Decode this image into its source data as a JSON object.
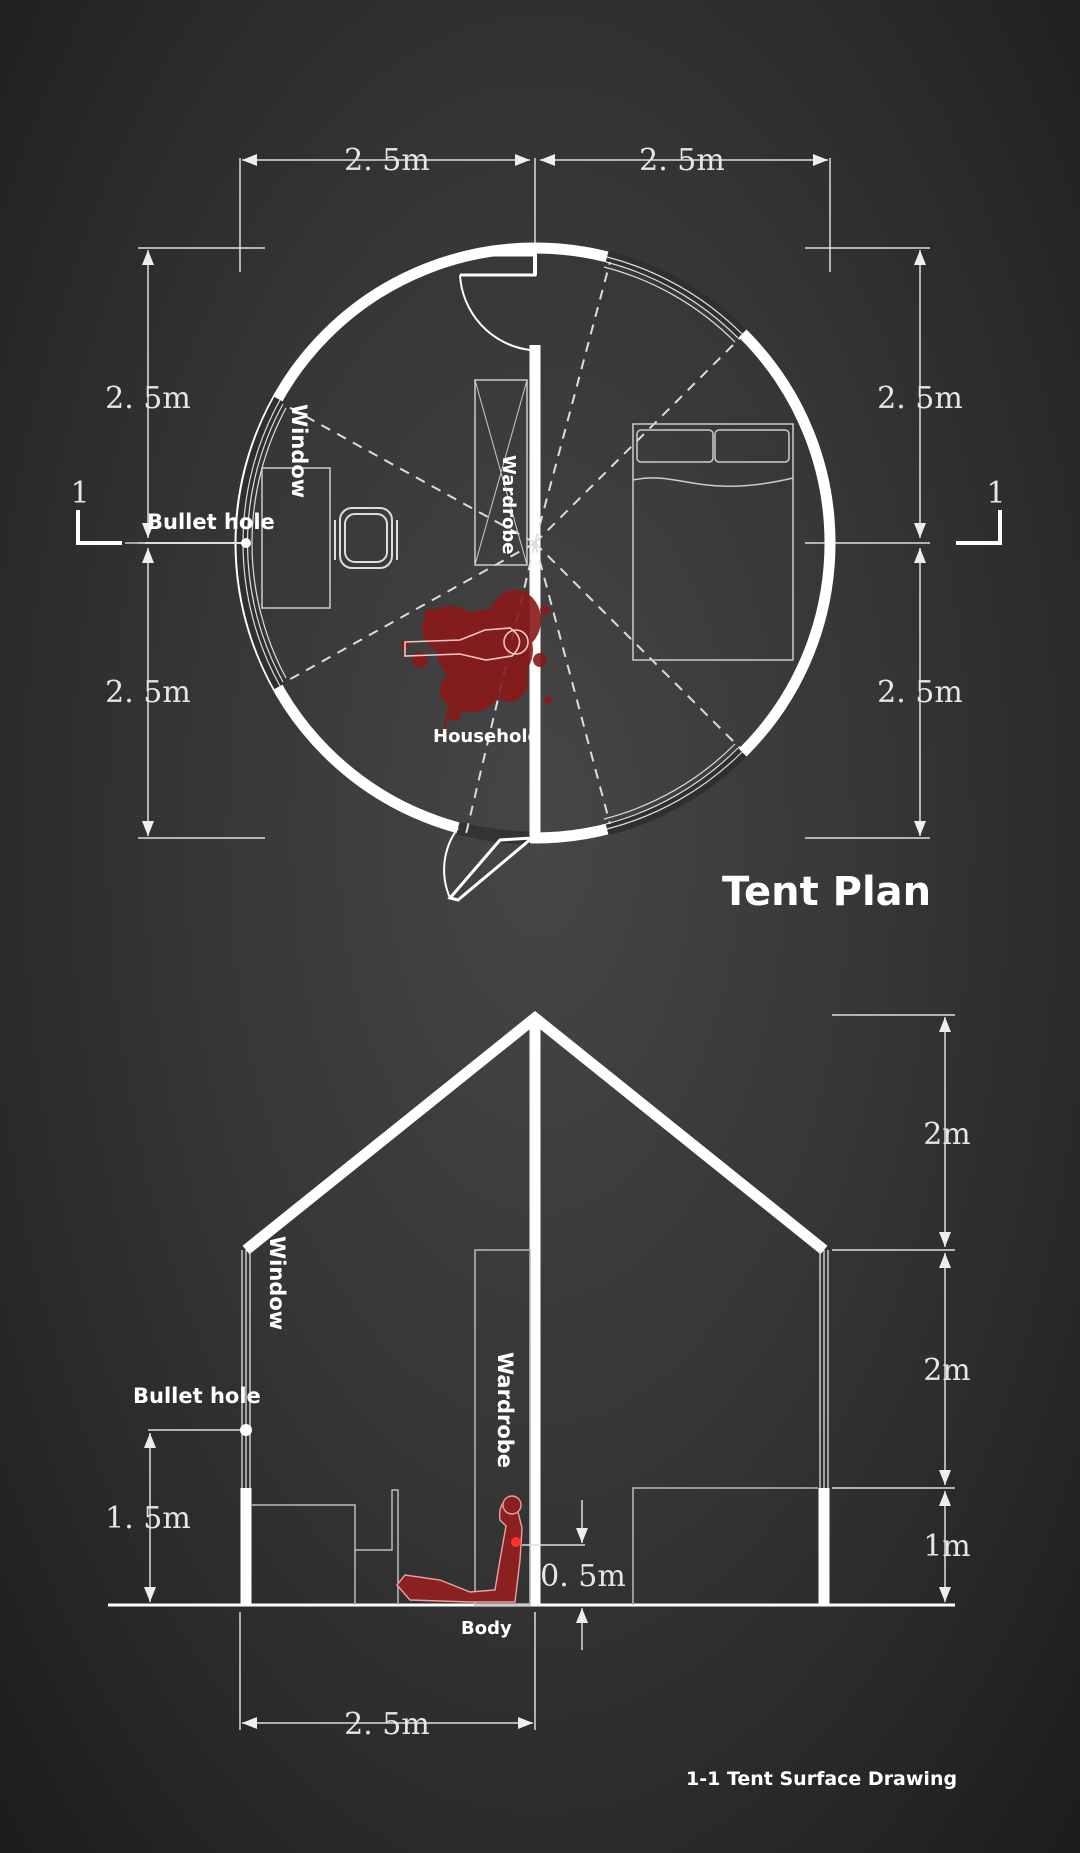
{
  "plan": {
    "title": "Tent Plan",
    "dims": {
      "top_left": "2. 5m",
      "top_right": "2. 5m",
      "left_upper": "2. 5m",
      "left_lower": "2. 5m",
      "right_upper": "2. 5m",
      "right_lower": "2. 5m"
    },
    "section_marks": {
      "left": "1",
      "right": "1"
    },
    "labels": {
      "window": "Window",
      "bullet_hole": "Bullet hole",
      "wardrobe": "Wardrobe",
      "household": "Household"
    }
  },
  "section": {
    "title": "1-1 Tent Surface Drawing",
    "dims": {
      "right_top": "2m",
      "right_mid": "2m",
      "right_bottom": "1m",
      "left_height": "1. 5m",
      "body_height": "0. 5m",
      "bottom_width": "2. 5m"
    },
    "labels": {
      "window": "Window",
      "bullet_hole": "Bullet hole",
      "wardrobe": "Wardrobe",
      "body": "Body"
    }
  },
  "colors": {
    "board": "#363636",
    "chalk": "#ffffff",
    "blood": "#8b1a1a"
  }
}
